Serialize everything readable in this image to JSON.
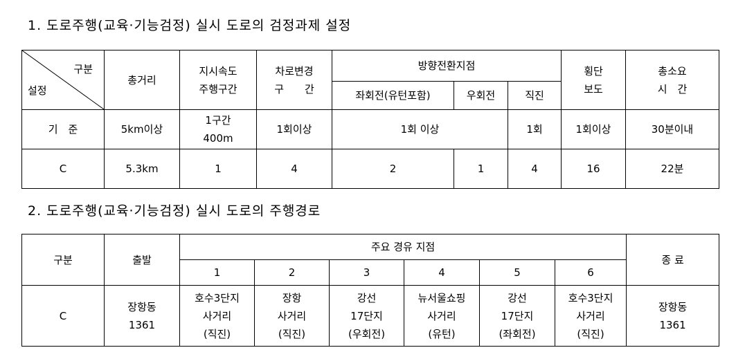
{
  "section1": {
    "title": "1. 도로주행(교육·기능검정) 실시 도로의 검정과제 설정",
    "header": {
      "diag_top": "구분",
      "diag_bottom": "설정",
      "total_distance": "총거리",
      "speed_section": [
        "지시속도",
        "주행구간"
      ],
      "lane_change": [
        "차로변경",
        "구　　간"
      ],
      "turn_points": "방향전환지점",
      "left_turn": "좌회전(유턴포함)",
      "right_turn": "우회전",
      "straight": "직진",
      "crosswalk": [
        "횡단",
        "보도"
      ],
      "total_time": [
        "총소요",
        "시　간"
      ]
    },
    "standard_row": {
      "label": "기　준",
      "total_distance": "5km이상",
      "speed_section": [
        "1구간",
        "400m"
      ],
      "lane_change": "1회이상",
      "turn_left_right": "1회 이상",
      "straight": "1회",
      "crosswalk": "1회이상",
      "total_time": "30분이내"
    },
    "c_row": {
      "label": "C",
      "total_distance": "5.3km",
      "speed_section": "1",
      "lane_change": "4",
      "left_turn": "2",
      "right_turn": "1",
      "straight": "4",
      "crosswalk": "16",
      "total_time": "22분"
    }
  },
  "section2": {
    "title": "2. 도로주행(교육·기능검정) 실시 도로의 주행경로",
    "header": {
      "category": "구분",
      "start": "출발",
      "waypoints": "주요 경유 지점",
      "numbers": [
        "1",
        "2",
        "3",
        "4",
        "5",
        "6"
      ],
      "end": "종 료"
    },
    "c_row": {
      "label": "C",
      "start": [
        "장항동",
        "1361"
      ],
      "waypoints": [
        [
          "호수3단지",
          "사거리",
          "(직진)"
        ],
        [
          "장항",
          "사거리",
          "(직진)"
        ],
        [
          "강선",
          "17단지",
          "(우회전)"
        ],
        [
          "뉴서울쇼핑",
          "사거리",
          "(유턴)"
        ],
        [
          "강선",
          "17단지",
          "(좌회전)"
        ],
        [
          "호수3단지",
          "사거리",
          "(직진)"
        ]
      ],
      "end": [
        "장항동",
        "1361"
      ]
    }
  }
}
